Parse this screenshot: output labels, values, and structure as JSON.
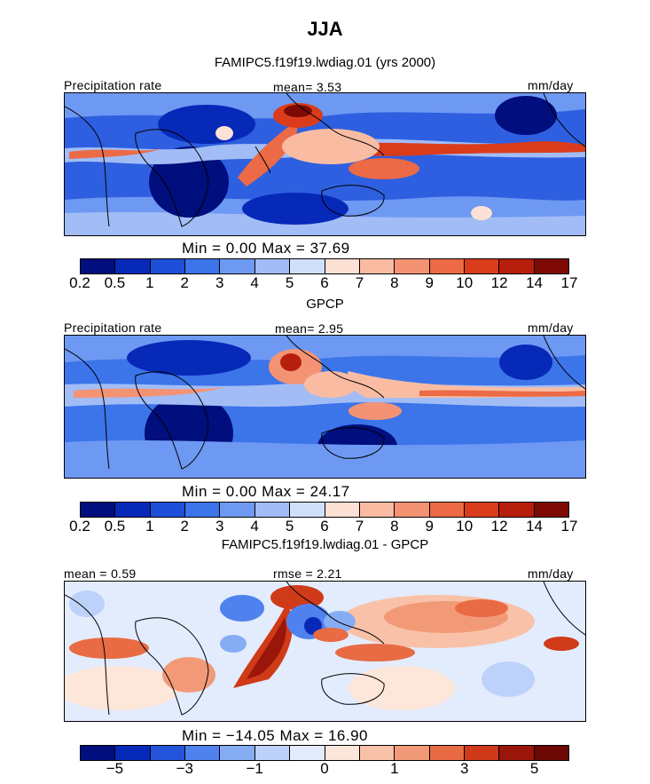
{
  "title": "JJA",
  "colors": {
    "scale15": [
      "#000e7e",
      "#0729b8",
      "#1e4fd8",
      "#3c74ea",
      "#6e99f2",
      "#a2bdf6",
      "#d0e0fb",
      "#fde1d4",
      "#f9bca3",
      "#f49374",
      "#ec6a45",
      "#da3c1b",
      "#b71f0d",
      "#7f0a05"
    ],
    "diff13": [
      "#000e7e",
      "#0729b8",
      "#2354d9",
      "#4f82ee",
      "#86acf4",
      "#bcd2fa",
      "#e3ecfd",
      "#fde6da",
      "#f9c2a8",
      "#f29a78",
      "#e86b44",
      "#cf3a19",
      "#9a150a",
      "#6d0804"
    ]
  },
  "panels": [
    {
      "title": "FAMIPC5.f19f19.lwdiag.01 (yrs 2000)",
      "left_label": "Precipitation rate",
      "center_label": "mean=   3.53",
      "unit": "mm/day",
      "minmax": "Min =    0.00 Max =  37.69",
      "ticks": [
        "0.2",
        "0.5",
        "1",
        "2",
        "3",
        "4",
        "5",
        "6",
        "7",
        "8",
        "9",
        "10",
        "12",
        "14",
        "17"
      ]
    },
    {
      "title": "GPCP",
      "left_label": "Precipitation rate",
      "center_label": "mean=   2.95",
      "unit": "mm/day",
      "minmax": "Min =    0.00 Max =  24.17",
      "ticks": [
        "0.2",
        "0.5",
        "1",
        "2",
        "3",
        "4",
        "5",
        "6",
        "7",
        "8",
        "9",
        "10",
        "12",
        "14",
        "17"
      ]
    },
    {
      "title": "FAMIPC5.f19f19.lwdiag.01 - GPCP",
      "left_label": "mean =   0.59",
      "center_label": "rmse =   2.21",
      "unit": "mm/day",
      "minmax": "Min = −14.05 Max =  16.90",
      "ticks": [
        "−5",
        "−3",
        "−1",
        "0",
        "1",
        "3",
        "5"
      ]
    }
  ],
  "chart_data": [
    {
      "type": "heatmap",
      "title": "FAMIPC5.f19f19.lwdiag.01 (yrs 2000)",
      "variable": "Precipitation rate",
      "units": "mm/day",
      "mean": 3.53,
      "min": 0.0,
      "max": 37.69,
      "colorbar_levels": [
        0.2,
        0.5,
        1,
        2,
        3,
        4,
        5,
        6,
        7,
        8,
        9,
        10,
        12,
        14,
        17
      ]
    },
    {
      "type": "heatmap",
      "title": "GPCP",
      "variable": "Precipitation rate",
      "units": "mm/day",
      "mean": 2.95,
      "min": 0.0,
      "max": 24.17,
      "colorbar_levels": [
        0.2,
        0.5,
        1,
        2,
        3,
        4,
        5,
        6,
        7,
        8,
        9,
        10,
        12,
        14,
        17
      ]
    },
    {
      "type": "heatmap",
      "title": "FAMIPC5.f19f19.lwdiag.01 - GPCP",
      "units": "mm/day",
      "mean": 0.59,
      "rmse": 2.21,
      "min": -14.05,
      "max": 16.9,
      "colorbar_levels": [
        -5,
        -3,
        -1,
        0,
        1,
        3,
        5
      ]
    }
  ]
}
